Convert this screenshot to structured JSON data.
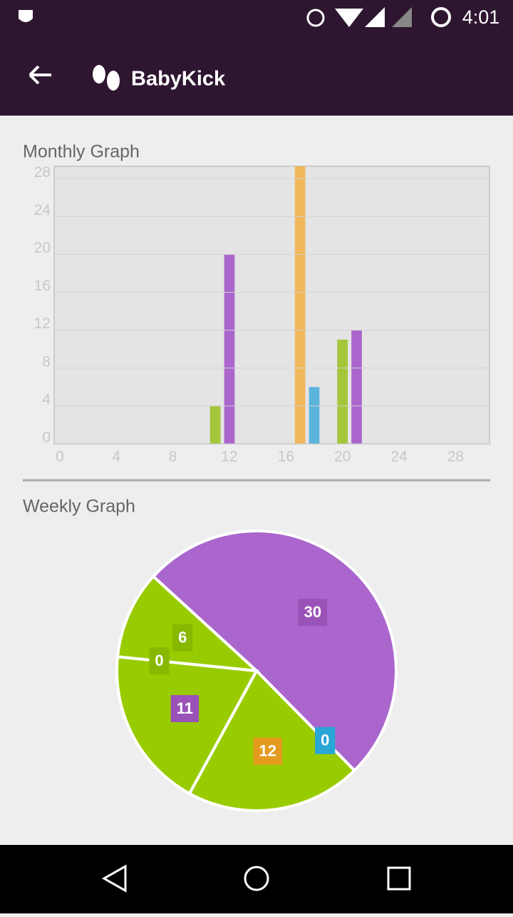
{
  "status_bar": {
    "time": "4:01"
  },
  "app_bar": {
    "title": "BabyKick"
  },
  "chart_data": [
    {
      "type": "bar",
      "title": "Monthly Graph",
      "x": [
        11,
        12,
        17,
        18,
        20,
        21
      ],
      "values": [
        4,
        20,
        30,
        6,
        11,
        12
      ],
      "colors": [
        "#a4c639",
        "#aa66cc",
        "#f0b85a",
        "#5ab4dc",
        "#a4c639",
        "#aa66cc"
      ],
      "xlim": [
        -0.4,
        30.4
      ],
      "ylim": [
        0,
        29.3
      ],
      "xticks": [
        0,
        4,
        8,
        12,
        16,
        20,
        24,
        28
      ],
      "yticks": [
        0,
        4,
        8,
        12,
        16,
        20,
        24,
        28
      ],
      "grid": true
    },
    {
      "type": "pie",
      "title": "Weekly Graph",
      "values": [
        30,
        0,
        12,
        11,
        0,
        6
      ],
      "colors": [
        "#aa66cc",
        "#33b5e5",
        "#99cc00",
        "#99cc00",
        "#99cc00",
        "#99cc00"
      ],
      "label_colors": [
        "#9a52b8",
        "#2aa6d6",
        "#e39a1e",
        "#9a52b8",
        "#88b800",
        "#88b800"
      ]
    }
  ]
}
